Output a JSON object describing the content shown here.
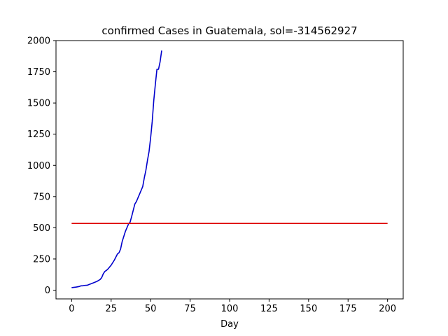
{
  "chart_data": {
    "type": "line",
    "title": "confirmed Cases in Guatemala, sol=-314562927",
    "xlabel": "Day",
    "ylabel": "",
    "xlim": [
      -9.9,
      209.9
    ],
    "ylim": [
      -70,
      2000
    ],
    "xticks": [
      0,
      25,
      50,
      75,
      100,
      125,
      150,
      175,
      200
    ],
    "yticks": [
      0,
      250,
      500,
      750,
      1000,
      1250,
      1500,
      1750,
      2000
    ],
    "grid": false,
    "legend": "none",
    "series": [
      {
        "color": "#0000cc",
        "x": [
          0,
          3,
          5,
          6,
          7,
          8,
          10,
          12,
          14,
          16,
          18,
          19,
          20,
          21,
          22,
          23,
          25,
          27,
          28,
          29,
          30,
          31,
          32,
          33,
          34,
          35,
          36,
          37,
          38,
          39,
          40,
          41,
          42,
          43,
          45,
          46,
          47,
          48,
          49,
          50,
          51,
          52,
          53,
          54,
          55,
          56,
          57
        ],
        "y": [
          20,
          25,
          30,
          35,
          35,
          38,
          40,
          50,
          60,
          70,
          85,
          100,
          130,
          150,
          158,
          170,
          200,
          240,
          265,
          290,
          300,
          330,
          390,
          430,
          470,
          500,
          530,
          545,
          590,
          640,
          690,
          710,
          740,
          770,
          830,
          900,
          960,
          1040,
          1110,
          1220,
          1350,
          1520,
          1650,
          1770,
          1770,
          1830,
          1920
        ]
      },
      {
        "color": "#dd0000",
        "x": [
          0,
          200
        ],
        "y": [
          535,
          535
        ]
      }
    ]
  }
}
